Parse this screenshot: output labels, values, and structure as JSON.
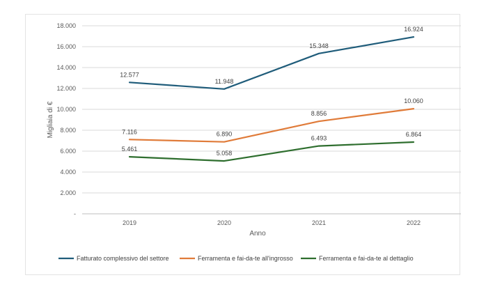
{
  "chart_data": {
    "type": "line",
    "title": "",
    "xlabel": "Anno",
    "ylabel": "Migliaia di €",
    "categories": [
      "2019",
      "2020",
      "2021",
      "2022"
    ],
    "ylim": [
      0,
      18000
    ],
    "yticks": [
      0,
      2000,
      4000,
      6000,
      8000,
      10000,
      12000,
      14000,
      16000,
      18000
    ],
    "ytick_labels": [
      "-",
      "2.000",
      "4.000",
      "6.000",
      "8.000",
      "10.000",
      "12.000",
      "14.000",
      "16.000",
      "18.000"
    ],
    "grid": true,
    "legend_position": "bottom",
    "series": [
      {
        "name": "Fatturato complessivo del settore",
        "color": "#1f5c7a",
        "values": [
          12577,
          11948,
          15348,
          16924
        ],
        "labels": [
          "12.577",
          "11.948",
          "15.348",
          "16.924"
        ]
      },
      {
        "name": "Ferramenta e fai-da-te all'ingrosso",
        "color": "#e07b39",
        "values": [
          7116,
          6890,
          8856,
          10060
        ],
        "labels": [
          "7.116",
          "6.890",
          "8.856",
          "10.060"
        ]
      },
      {
        "name": "Ferramenta e fai-da-te al dettaglio",
        "color": "#2e6e2e",
        "values": [
          5461,
          5058,
          6493,
          6864
        ],
        "labels": [
          "5.461",
          "5.058",
          "6.493",
          "6.864"
        ]
      }
    ]
  }
}
